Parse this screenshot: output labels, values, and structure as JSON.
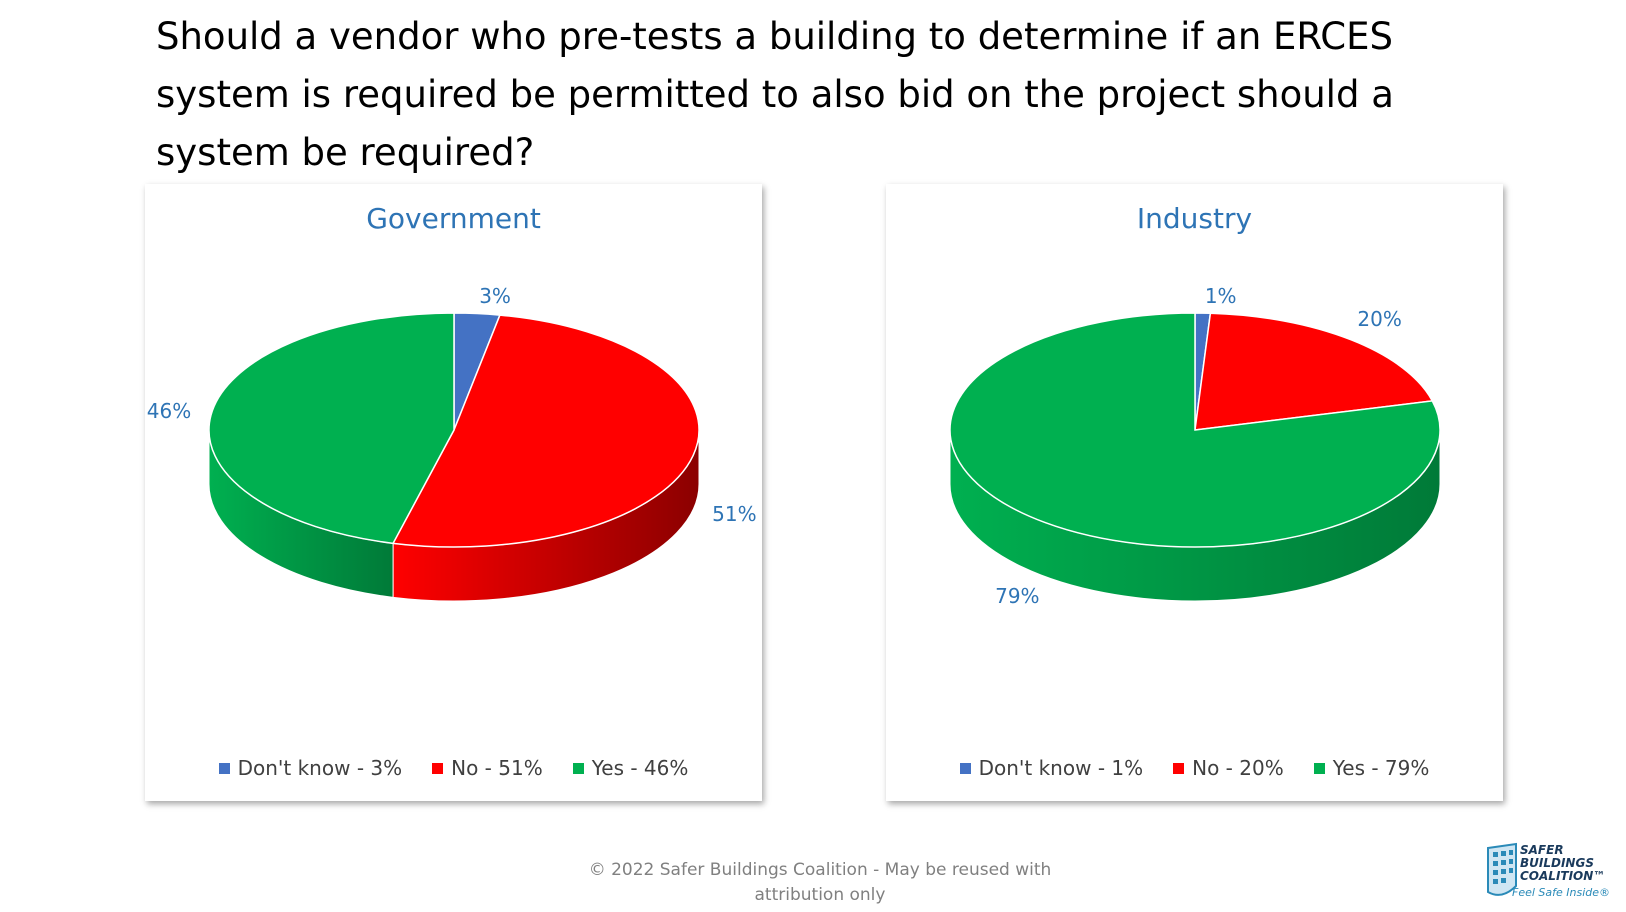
{
  "question": "Should a vendor who pre-tests a building to determine if an ERCES system is required be permitted to also bid on the project should a system be required?",
  "chart_data": [
    {
      "type": "pie",
      "title": "Government",
      "categories": [
        "Don't know",
        "No",
        "Yes"
      ],
      "values": [
        3,
        51,
        46
      ],
      "data_labels": [
        "3%",
        "51%",
        "46%"
      ],
      "legend_labels": [
        "Don't know  - 3%",
        "No  - 51%",
        "Yes  - 46%"
      ],
      "colors": [
        "#4472c4",
        "#ff0000",
        "#00b050"
      ],
      "side_colors": [
        "#2f4f8f",
        "#8b0000",
        "#007a38"
      ],
      "legend_position": "bottom"
    },
    {
      "type": "pie",
      "title": "Industry",
      "categories": [
        "Don't know",
        "No",
        "Yes"
      ],
      "values": [
        1,
        20,
        79
      ],
      "data_labels": [
        "1%",
        "20%",
        "79%"
      ],
      "legend_labels": [
        "Don't know  - 1%",
        "No  - 20%",
        "Yes  - 79%"
      ],
      "colors": [
        "#4472c4",
        "#ff0000",
        "#00b050"
      ],
      "side_colors": [
        "#2f4f8f",
        "#8b0000",
        "#007a38"
      ],
      "legend_position": "bottom"
    }
  ],
  "footer": {
    "line1": "© 2022 Safer Buildings Coalition - May be reused with",
    "line2": "attribution only"
  },
  "logo": {
    "line1": "SAFER",
    "line2": "BUILDINGS",
    "line3": "COALITION™",
    "tagline": "Feel Safe Inside®"
  }
}
